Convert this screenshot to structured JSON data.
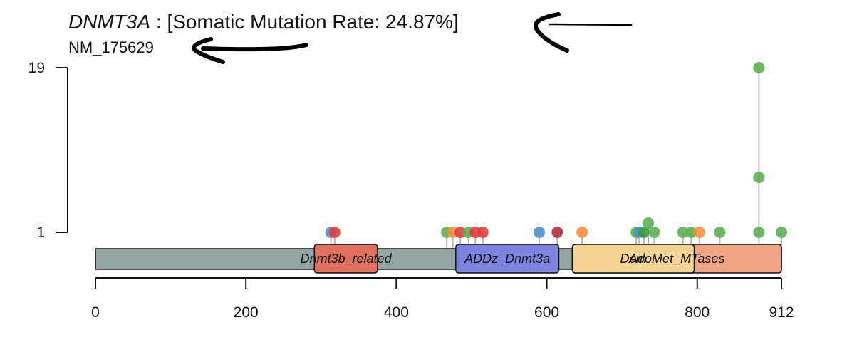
{
  "header": {
    "gene": "DNMT3A",
    "rate_text": " : [Somatic Mutation Rate: 24.87%]",
    "transcript": "NM_175629"
  },
  "chart_data": {
    "type": "lollipop",
    "protein_length": 912,
    "x_ticks": [
      0,
      200,
      400,
      600,
      800,
      912
    ],
    "x_tick_labels": [
      "0",
      "200",
      "400",
      "600",
      "800",
      "912"
    ],
    "y_ticks": [
      1,
      19
    ],
    "y_tick_labels": [
      "1",
      "19"
    ],
    "backbone_color": "#95a5a3",
    "domains": [
      {
        "name": "Dnmt3b_related",
        "start": 291,
        "end": 375,
        "color": "#e07060"
      },
      {
        "name": "ADDz_Dnmt3a",
        "start": 479,
        "end": 616,
        "color": "#7b85e0"
      },
      {
        "name": "AdoMet_MTases",
        "start": 634,
        "end": 912,
        "color": "#f0a585"
      },
      {
        "name": "Dcm",
        "start": 634,
        "end": 796,
        "color": "#f5d595"
      }
    ],
    "mutations": [
      {
        "pos": 313,
        "count": 1,
        "color": "#4a90c8"
      },
      {
        "pos": 318,
        "count": 1,
        "color": "#e03a3a"
      },
      {
        "pos": 467,
        "count": 1,
        "color": "#5aae50"
      },
      {
        "pos": 475,
        "count": 1,
        "color": "#f6903a"
      },
      {
        "pos": 485,
        "count": 1,
        "color": "#e03a3a"
      },
      {
        "pos": 496,
        "count": 1,
        "color": "#5aae50"
      },
      {
        "pos": 505,
        "count": 1,
        "color": "#e03a3a"
      },
      {
        "pos": 515,
        "count": 1,
        "color": "#e03a3a"
      },
      {
        "pos": 590,
        "count": 1,
        "color": "#4a90c8"
      },
      {
        "pos": 614,
        "count": 1,
        "color": "#b02a3a"
      },
      {
        "pos": 647,
        "count": 1,
        "color": "#f6903a"
      },
      {
        "pos": 719,
        "count": 1,
        "color": "#5aae50"
      },
      {
        "pos": 723,
        "count": 1,
        "color": "#4a90c8"
      },
      {
        "pos": 729,
        "count": 1,
        "color": "#3a9a40"
      },
      {
        "pos": 735,
        "count": 2,
        "color": "#5aae50"
      },
      {
        "pos": 743,
        "count": 1,
        "color": "#5aae50"
      },
      {
        "pos": 781,
        "count": 1,
        "color": "#5aae50"
      },
      {
        "pos": 792,
        "count": 1,
        "color": "#5aae50"
      },
      {
        "pos": 803,
        "count": 1,
        "color": "#f6903a"
      },
      {
        "pos": 830,
        "count": 1,
        "color": "#5aae50"
      },
      {
        "pos": 882,
        "count": 1,
        "color": "#5aae50"
      },
      {
        "pos": 882,
        "count": 7,
        "color": "#5aae50"
      },
      {
        "pos": 882,
        "count": 19,
        "color": "#5aae50"
      },
      {
        "pos": 912,
        "count": 1,
        "color": "#5aae50"
      }
    ]
  }
}
